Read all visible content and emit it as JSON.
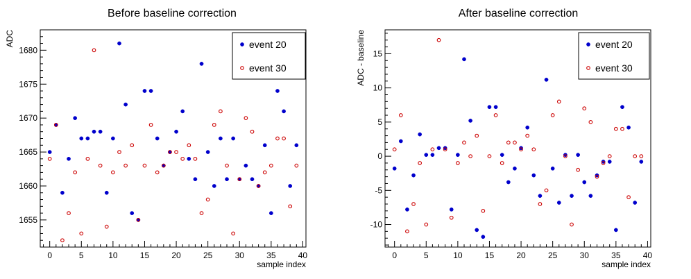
{
  "colors": {
    "event20": "#0000cc",
    "event30": "#cc0000"
  },
  "chart_data": [
    {
      "type": "scatter",
      "title": "Before baseline correction",
      "xlabel": "sample index",
      "ylabel": "ADC",
      "xlim": [
        -1.5,
        40.5
      ],
      "ylim": [
        1651,
        1683
      ],
      "xticks": [
        0,
        5,
        10,
        15,
        20,
        25,
        30,
        35,
        40
      ],
      "yticks": [
        1655,
        1660,
        1665,
        1670,
        1675,
        1680
      ],
      "legend": {
        "placement": "top-right",
        "entries": [
          "event 20",
          "event 30"
        ]
      },
      "series": [
        {
          "name": "event 20",
          "marker": "filled-circle",
          "x": [
            0,
            1,
            2,
            3,
            4,
            5,
            6,
            7,
            8,
            9,
            10,
            11,
            12,
            13,
            14,
            15,
            16,
            17,
            18,
            19,
            20,
            21,
            22,
            23,
            24,
            25,
            26,
            27,
            28,
            29,
            30,
            31,
            32,
            33,
            34,
            35,
            36,
            37,
            38,
            39
          ],
          "y": [
            1665,
            1669,
            1659,
            1664,
            1670,
            1667,
            1667,
            1668,
            1668,
            1659,
            1667,
            1681,
            1672,
            1656,
            1655,
            1674,
            1674,
            1667,
            1663,
            1665,
            1668,
            1671,
            1664,
            1661,
            1678,
            1665,
            1660,
            1667,
            1661,
            1667,
            1661,
            1663,
            1661,
            1660,
            1666,
            1656,
            1674,
            1671,
            1660,
            1666
          ]
        },
        {
          "name": "event 30",
          "marker": "open-circle",
          "x": [
            0,
            1,
            2,
            3,
            4,
            5,
            6,
            7,
            8,
            9,
            10,
            11,
            12,
            13,
            14,
            15,
            16,
            17,
            18,
            19,
            20,
            21,
            22,
            23,
            24,
            25,
            26,
            27,
            28,
            29,
            30,
            31,
            32,
            33,
            34,
            35,
            36,
            37,
            38,
            39
          ],
          "y": [
            1664,
            1669,
            1652,
            1656,
            1662,
            1653,
            1664,
            1680,
            1663,
            1654,
            1662,
            1665,
            1663,
            1666,
            1655,
            1663,
            1669,
            1662,
            1663,
            1665,
            1665,
            1664,
            1666,
            1664,
            1656,
            1658,
            1669,
            1671,
            1663,
            1653,
            1661,
            1670,
            1668,
            1660,
            1662,
            1663,
            1667,
            1667,
            1657,
            1663
          ]
        }
      ]
    },
    {
      "type": "scatter",
      "title": "After baseline correction",
      "xlabel": "sample index",
      "ylabel": "ADC - baseline",
      "xlim": [
        -1.5,
        40.5
      ],
      "ylim": [
        -13.3,
        18.5
      ],
      "xticks": [
        0,
        5,
        10,
        15,
        20,
        25,
        30,
        35,
        40
      ],
      "yticks": [
        -10,
        -5,
        0,
        5,
        10,
        15
      ],
      "legend": {
        "placement": "top-right",
        "entries": [
          "event 20",
          "event 30"
        ]
      },
      "series": [
        {
          "name": "event 20",
          "marker": "filled-circle",
          "x": [
            0,
            1,
            2,
            3,
            4,
            5,
            6,
            7,
            8,
            9,
            10,
            11,
            12,
            13,
            14,
            15,
            16,
            17,
            18,
            19,
            20,
            21,
            22,
            23,
            24,
            25,
            26,
            27,
            28,
            29,
            30,
            31,
            32,
            33,
            34,
            35,
            36,
            37,
            38,
            39
          ],
          "y": [
            -1.8,
            2.2,
            -7.8,
            -2.8,
            3.2,
            0.2,
            0.2,
            1.2,
            1.2,
            -7.8,
            0.2,
            14.2,
            5.2,
            -10.8,
            -11.8,
            7.2,
            7.2,
            0.2,
            -3.8,
            -1.8,
            1.2,
            4.2,
            -2.8,
            -5.8,
            11.2,
            -1.8,
            -6.8,
            0.2,
            -5.8,
            0.2,
            -3.8,
            -5.8,
            -2.8,
            -0.8,
            -0.8,
            -10.8,
            7.2,
            4.2,
            -6.8,
            -0.8
          ]
        },
        {
          "name": "event 30",
          "marker": "open-circle",
          "x": [
            0,
            1,
            2,
            3,
            4,
            5,
            6,
            7,
            8,
            9,
            10,
            11,
            12,
            13,
            14,
            15,
            16,
            17,
            18,
            19,
            20,
            21,
            22,
            23,
            24,
            25,
            26,
            27,
            28,
            29,
            30,
            31,
            32,
            33,
            34,
            35,
            36,
            37,
            38,
            39
          ],
          "y": [
            1,
            6,
            -11,
            -7,
            -1,
            -10,
            1,
            17,
            1,
            -9,
            -1,
            2,
            0,
            3,
            -8,
            0,
            6,
            -1,
            2,
            2,
            1,
            3,
            1,
            -7,
            -5,
            6,
            8,
            0,
            -10,
            -2,
            7,
            5,
            -3,
            -1,
            0,
            4,
            4,
            -6,
            0,
            0
          ]
        }
      ]
    }
  ]
}
